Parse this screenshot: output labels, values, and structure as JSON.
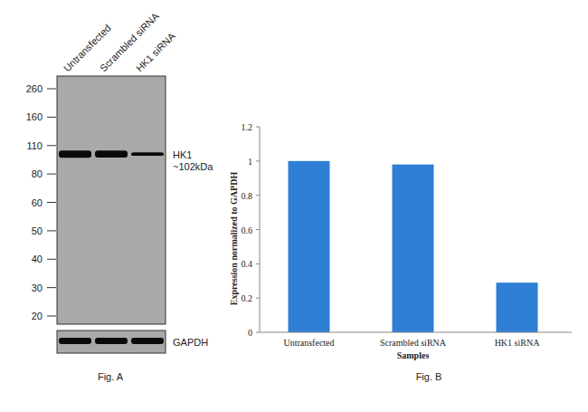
{
  "blot": {
    "caption": "Fig. A",
    "lanes": [
      "Untransfected",
      "Scrambled siRNA",
      "HK1 siRNA"
    ],
    "markers": [
      260,
      160,
      110,
      80,
      60,
      50,
      40,
      30,
      20
    ],
    "target": "HK1",
    "target_size": "~102kDa",
    "loading_control": "GAPDH"
  },
  "chart_data": {
    "type": "bar",
    "caption": "Fig. B",
    "categories": [
      "Untransfected",
      "Scrambled siRNA",
      "HK1 siRNA"
    ],
    "values": [
      1.0,
      0.98,
      0.29
    ],
    "color": "#2f7fd6",
    "x_label": "Samples",
    "y_label": "Expression normalized to GAPDH",
    "ylim": [
      0,
      1.2
    ],
    "yticks": [
      0,
      0.2,
      0.4,
      0.6,
      0.8,
      1,
      1.2
    ],
    "grid": false
  }
}
